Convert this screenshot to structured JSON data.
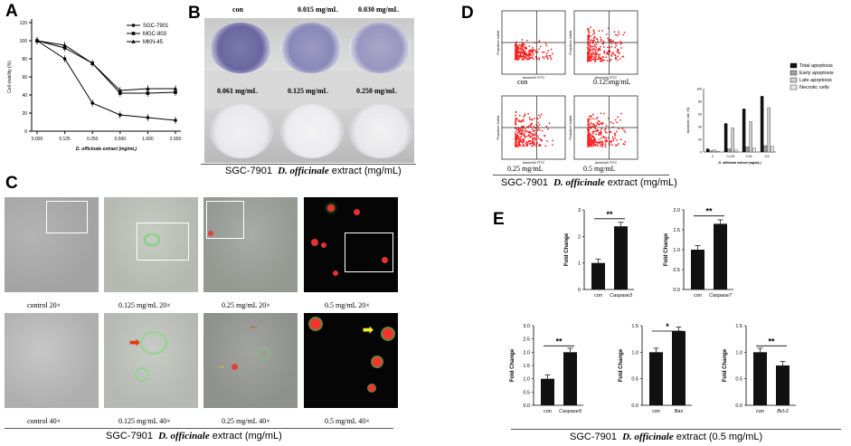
{
  "panels": {
    "A": "A",
    "B": "B",
    "C": "C",
    "D": "D",
    "E": "E"
  },
  "panelA": {
    "chart_data": {
      "type": "line",
      "xlabel": "D. officinale extract (mg/mL)",
      "ylabel": "Cell viability (%)",
      "categories": [
        "0.000",
        "0.125",
        "0.250",
        "0.500",
        "1.000",
        "2.000"
      ],
      "yticks": [
        "0",
        "20",
        "40",
        "60",
        "80",
        "100",
        "120"
      ],
      "ylim": [
        0,
        120
      ],
      "series": [
        {
          "name": "SGC-7901",
          "values": [
            100,
            80,
            31,
            18,
            15,
            12
          ]
        },
        {
          "name": "MGC-803",
          "values": [
            100,
            92,
            75,
            42,
            42,
            43
          ]
        },
        {
          "name": "MKN-45",
          "values": [
            100,
            95,
            75,
            45,
            47,
            47
          ]
        }
      ],
      "legend": "top-right"
    }
  },
  "panelB": {
    "labels": [
      "con",
      "0.015 mg/mL",
      "0.030 mg/mL",
      "0.061 mg/mL",
      "0.125 mg/mL",
      "0.250 mg/mL"
    ],
    "caption_cell": "SGC-7901",
    "caption_drug": "D. officinale",
    "caption_rest": " extract (mg/mL)"
  },
  "panelC": {
    "labels_row1": [
      "control 20×",
      "0.125 mg/mL 20×",
      "0.25 mg/mL 20×",
      "0.5 mg/mL 20×"
    ],
    "labels_row2": [
      "control 40×",
      "0.125 mg/mL 40×",
      "0.25 mg/mL 40×",
      "0.5 mg/mL 40×"
    ],
    "caption_cell": "SGC-7901",
    "caption_drug": "D. officinale",
    "caption_rest": " extract (mg/mL)"
  },
  "panelD": {
    "flow_labels": [
      "con",
      "0.125mg/mL",
      "0.25 mg/mL",
      "0.5 mg/mL"
    ],
    "flow_ylabel": "Propidium Iodide",
    "flow_xlabel": "AnnexinV FITC",
    "caption_cell": "SGC-7901",
    "caption_drug": "D. officinale",
    "caption_rest": " extract (mg/mL)",
    "chart_data": {
      "type": "bar",
      "categories": [
        "0",
        "0.125",
        "0.25",
        "0.5"
      ],
      "ylabel": "Apoptosis rate (%)",
      "xlabel": "D. officinale extract (mg/mL)",
      "yticks": [
        "0",
        "20",
        "40",
        "60",
        "80",
        "100"
      ],
      "ylim": [
        0,
        100
      ],
      "series": [
        {
          "name": "Total apoptosis",
          "values": [
            5,
            45,
            68,
            88
          ]
        },
        {
          "name": "Early apoptosis",
          "values": [
            2,
            5,
            8,
            10
          ]
        },
        {
          "name": "Late apoptosis",
          "values": [
            3,
            38,
            48,
            70
          ]
        },
        {
          "name": "Necrotic cells",
          "values": [
            1,
            3,
            6,
            9
          ]
        }
      ]
    }
  },
  "panelE": {
    "chart_data": [
      {
        "type": "bar",
        "categories": [
          "con",
          "Caspase3"
        ],
        "values": [
          1.0,
          2.38
        ],
        "ylabel": "Fold Change",
        "ylim": [
          0,
          3
        ],
        "yticks": [
          "0",
          "1",
          "2",
          "3"
        ],
        "sig": "**"
      },
      {
        "type": "bar",
        "categories": [
          "con",
          "Caspase7"
        ],
        "values": [
          1.0,
          1.65
        ],
        "ylabel": "Fold Change",
        "ylim": [
          0,
          2
        ],
        "yticks": [
          "0.0",
          "0.5",
          "1.0",
          "1.5",
          "2.0"
        ],
        "sig": "**"
      },
      {
        "type": "bar",
        "categories": [
          "con",
          "Caspase9"
        ],
        "values": [
          1.0,
          2.0
        ],
        "ylabel": "Fold Change",
        "ylim": [
          0,
          3
        ],
        "yticks": [
          "0.0",
          "0.5",
          "1.0",
          "1.5",
          "2.0",
          "2.5",
          "3.0"
        ],
        "sig": "**"
      },
      {
        "type": "bar",
        "categories": [
          "con",
          "Bax"
        ],
        "values": [
          1.0,
          1.4
        ],
        "ylabel": "Fold Change",
        "ylim": [
          0,
          1.5
        ],
        "yticks": [
          "0.0",
          "0.5",
          "1.0",
          "1.5"
        ],
        "sig": "*"
      },
      {
        "type": "bar",
        "categories": [
          "con",
          "Bcl-2"
        ],
        "values": [
          1.0,
          0.75
        ],
        "ylabel": "Fold Change",
        "ylim": [
          0,
          1.5
        ],
        "yticks": [
          "0.0",
          "0.5",
          "1.0",
          "1.5"
        ],
        "sig": "**"
      }
    ],
    "caption_cell": "SGC-7901",
    "caption_drug": "D. officinale",
    "caption_rest": " extract (0.5 mg/mL)"
  },
  "colors": {
    "stain": "#6e6aa8",
    "flow_dots": "#ff2020",
    "bar_black": "#111111",
    "green": "#3fa83f",
    "red": "#e02020"
  }
}
